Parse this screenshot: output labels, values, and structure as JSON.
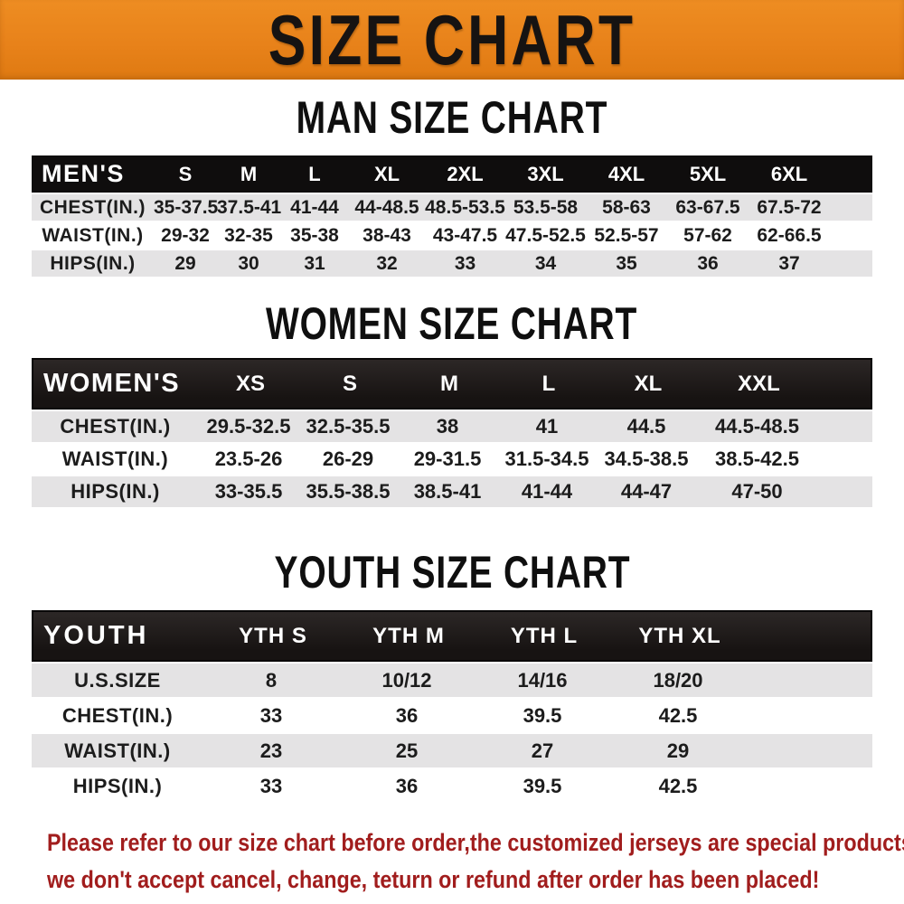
{
  "banner": {
    "title": "SIZE CHART",
    "bg_color": "#E8821A",
    "text_color": "#161312"
  },
  "sections": {
    "men": {
      "title": "MAN SIZE CHART",
      "header_label": "MEN'S",
      "sizes": [
        "S",
        "M",
        "L",
        "XL",
        "2XL",
        "3XL",
        "4XL",
        "5XL",
        "6XL"
      ],
      "rows": [
        {
          "label": "CHEST(IN.)",
          "values": [
            "35-37.5",
            "37.5-41",
            "41-44",
            "44-48.5",
            "48.5-53.5",
            "53.5-58",
            "58-63",
            "63-67.5",
            "67.5-72"
          ]
        },
        {
          "label": "WAIST(IN.)",
          "values": [
            "29-32",
            "32-35",
            "35-38",
            "38-43",
            "43-47.5",
            "47.5-52.5",
            "52.5-57",
            "57-62",
            "62-66.5"
          ]
        },
        {
          "label": "HIPS(IN.)",
          "values": [
            "29",
            "30",
            "31",
            "32",
            "33",
            "34",
            "35",
            "36",
            "37"
          ]
        }
      ]
    },
    "women": {
      "title": "WOMEN SIZE CHART",
      "header_label": "WOMEN'S",
      "sizes": [
        "XS",
        "S",
        "M",
        "L",
        "XL",
        "XXL"
      ],
      "rows": [
        {
          "label": "CHEST(IN.)",
          "values": [
            "29.5-32.5",
            "32.5-35.5",
            "38",
            "41",
            "44.5",
            "44.5-48.5"
          ]
        },
        {
          "label": "WAIST(IN.)",
          "values": [
            "23.5-26",
            "26-29",
            "29-31.5",
            "31.5-34.5",
            "34.5-38.5",
            "38.5-42.5"
          ]
        },
        {
          "label": "HIPS(IN.)",
          "values": [
            "33-35.5",
            "35.5-38.5",
            "38.5-41",
            "41-44",
            "44-47",
            "47-50"
          ]
        }
      ]
    },
    "youth": {
      "title": "YOUTH SIZE CHART",
      "header_label": "YOUTH",
      "sizes": [
        "YTH S",
        "YTH M",
        "YTH L",
        "YTH XL"
      ],
      "rows": [
        {
          "label": "U.S.SIZE",
          "values": [
            "8",
            "10/12",
            "14/16",
            "18/20"
          ]
        },
        {
          "label": "CHEST(IN.)",
          "values": [
            "33",
            "36",
            "39.5",
            "42.5"
          ]
        },
        {
          "label": "WAIST(IN.)",
          "values": [
            "23",
            "25",
            "27",
            "29"
          ]
        },
        {
          "label": "HIPS(IN.)",
          "values": [
            "33",
            "36",
            "39.5",
            "42.5"
          ]
        }
      ]
    }
  },
  "table_style": {
    "header_bg": "#141111",
    "stripe_color": "#E4E3E4",
    "text_color": "#1C1C1C"
  },
  "disclaimer": {
    "color": "#A11D1D",
    "line1": "Please refer to our size chart before order,the customized jerseys are special products,",
    "line2": "we don't accept cancel, change, teturn or refund after order has been placed!"
  }
}
